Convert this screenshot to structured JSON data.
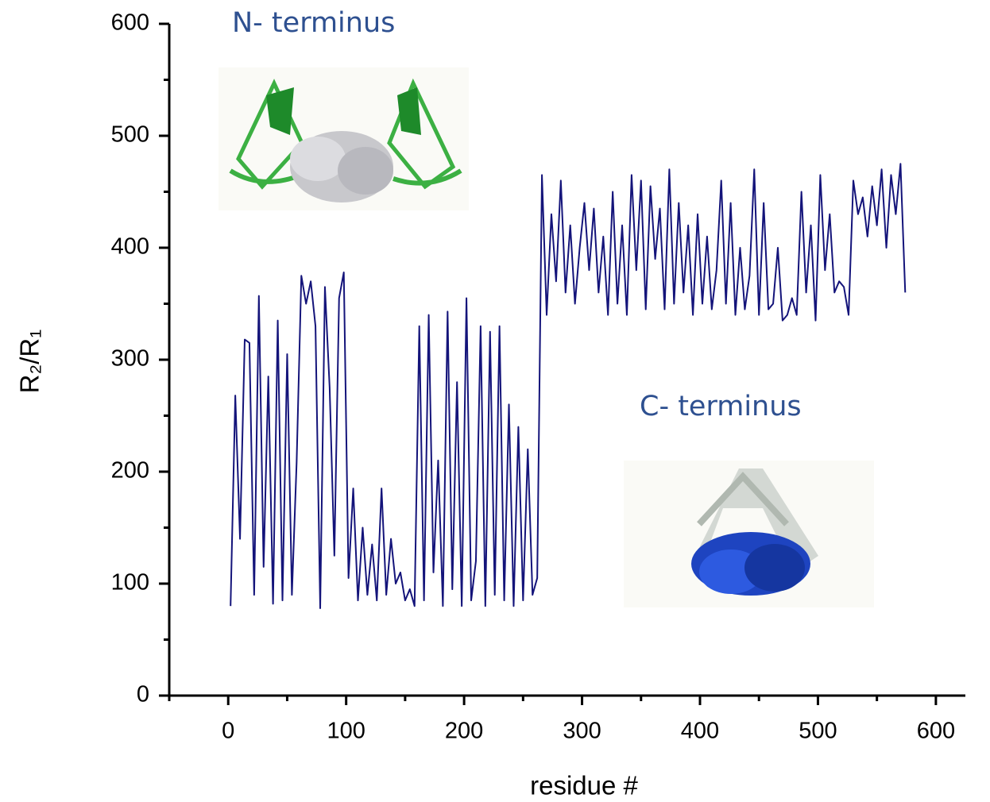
{
  "chart_data": {
    "type": "line",
    "x_label": "residue #",
    "y_label": "R₂/R₁",
    "annotations": [
      "N- terminus",
      "C- terminus"
    ],
    "color": "#14147a",
    "x": [
      2,
      6,
      10,
      14,
      18,
      22,
      26,
      30,
      34,
      38,
      42,
      46,
      50,
      54,
      58,
      62,
      66,
      70,
      74,
      78,
      82,
      86,
      90,
      94,
      98,
      102,
      106,
      110,
      114,
      118,
      122,
      126,
      130,
      134,
      138,
      142,
      146,
      150,
      154,
      158,
      162,
      166,
      170,
      174,
      178,
      182,
      186,
      190,
      194,
      198,
      202,
      206,
      210,
      214,
      218,
      222,
      226,
      230,
      234,
      238,
      242,
      246,
      250,
      254,
      258,
      262,
      266,
      270,
      274,
      278,
      282,
      286,
      290,
      294,
      298,
      302,
      306,
      310,
      314,
      318,
      322,
      326,
      330,
      334,
      338,
      342,
      346,
      350,
      354,
      358,
      362,
      366,
      370,
      374,
      378,
      382,
      386,
      390,
      394,
      398,
      402,
      406,
      410,
      414,
      418,
      422,
      426,
      430,
      434,
      438,
      442,
      446,
      450,
      454,
      458,
      462,
      466,
      470,
      474,
      478,
      482,
      486,
      490,
      494,
      498,
      502,
      506,
      510,
      514,
      518,
      522,
      526,
      530,
      534,
      538,
      542,
      546,
      550,
      554,
      558,
      562,
      566,
      570,
      574
    ],
    "values": [
      80,
      268,
      140,
      318,
      315,
      90,
      357,
      115,
      285,
      82,
      335,
      85,
      305,
      90,
      208,
      375,
      350,
      370,
      330,
      78,
      365,
      275,
      125,
      355,
      378,
      105,
      185,
      85,
      150,
      90,
      135,
      85,
      185,
      90,
      140,
      100,
      110,
      85,
      95,
      80,
      330,
      85,
      340,
      110,
      210,
      80,
      343,
      95,
      280,
      80,
      355,
      85,
      120,
      330,
      80,
      325,
      90,
      330,
      85,
      260,
      80,
      240,
      85,
      220,
      90,
      105,
      465,
      340,
      430,
      370,
      460,
      360,
      420,
      350,
      400,
      440,
      380,
      435,
      360,
      410,
      340,
      450,
      350,
      420,
      340,
      465,
      380,
      460,
      345,
      455,
      390,
      435,
      345,
      470,
      350,
      440,
      360,
      420,
      340,
      430,
      350,
      410,
      345,
      380,
      460,
      350,
      440,
      340,
      400,
      345,
      375,
      470,
      340,
      440,
      345,
      350,
      400,
      335,
      340,
      355,
      340,
      450,
      360,
      420,
      335,
      465,
      380,
      430,
      360,
      370,
      365,
      340,
      460,
      430,
      445,
      410,
      455,
      420,
      470,
      400,
      465,
      430,
      475,
      360
    ],
    "xlim": [
      -50,
      625
    ],
    "ylim": [
      0,
      600
    ],
    "xticks": [
      0,
      100,
      200,
      300,
      400,
      500,
      600
    ],
    "yticks": [
      0,
      100,
      200,
      300,
      400,
      500,
      600
    ],
    "xminorticks": [
      -50,
      50,
      150,
      250,
      350,
      450,
      550
    ],
    "yminorticks": [
      50,
      150,
      250,
      350,
      450,
      550
    ]
  }
}
